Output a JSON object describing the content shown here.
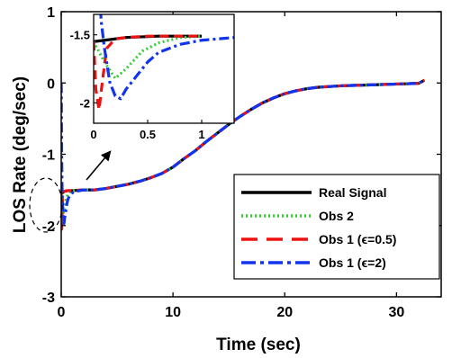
{
  "chart_data": {
    "type": "line",
    "xlabel": "Time (sec)",
    "ylabel": "LOS Rate (deg/sec)",
    "xlim": [
      0,
      34
    ],
    "ylim": [
      -3,
      1
    ],
    "xticks": [
      "0",
      "10",
      "20",
      "30"
    ],
    "yticks": [
      "-3",
      "-2",
      "-1",
      "0",
      "1"
    ],
    "grid": false,
    "legend_position": "bottom-right",
    "series": [
      {
        "name": "Real Signal",
        "color": "#000000",
        "style": "solid",
        "x": [
          0,
          0.3,
          0.6,
          1,
          2,
          3,
          4,
          5,
          6,
          7,
          8,
          9,
          10,
          11,
          12,
          13,
          14,
          15,
          16,
          17,
          18,
          19,
          20,
          21,
          22,
          23,
          24,
          25,
          26,
          27,
          28,
          29,
          30,
          31,
          32,
          32.5
        ],
        "y": [
          -1.55,
          -1.52,
          -1.51,
          -1.51,
          -1.5,
          -1.5,
          -1.48,
          -1.45,
          -1.42,
          -1.38,
          -1.33,
          -1.27,
          -1.18,
          -1.06,
          -0.95,
          -0.82,
          -0.7,
          -0.58,
          -0.47,
          -0.37,
          -0.28,
          -0.21,
          -0.15,
          -0.11,
          -0.08,
          -0.06,
          -0.05,
          -0.04,
          -0.035,
          -0.03,
          -0.025,
          -0.02,
          -0.015,
          -0.01,
          -0.005,
          0.04
        ]
      },
      {
        "name": "Obs 2",
        "color": "#33cc33",
        "style": "dotted",
        "x": [
          0,
          0.1,
          0.2,
          0.3,
          0.45,
          0.6,
          0.8,
          1,
          2,
          3,
          4,
          5,
          6,
          7,
          8,
          9,
          10,
          11,
          12,
          13,
          14,
          15,
          16,
          17,
          18,
          19,
          20,
          21,
          22,
          23,
          24,
          25,
          26,
          27,
          28,
          29,
          30,
          31,
          32,
          32.5
        ],
        "y": [
          -1.55,
          -1.7,
          -1.82,
          -1.75,
          -1.62,
          -1.56,
          -1.52,
          -1.51,
          -1.5,
          -1.5,
          -1.48,
          -1.45,
          -1.42,
          -1.38,
          -1.33,
          -1.27,
          -1.18,
          -1.06,
          -0.95,
          -0.82,
          -0.7,
          -0.58,
          -0.47,
          -0.37,
          -0.28,
          -0.21,
          -0.15,
          -0.11,
          -0.08,
          -0.06,
          -0.05,
          -0.04,
          -0.035,
          -0.03,
          -0.025,
          -0.02,
          -0.015,
          -0.01,
          -0.005,
          0.04
        ]
      },
      {
        "name": "Obs 1 (ϵ=0.5)",
        "color": "#ee1111",
        "style": "dashed",
        "x": [
          0,
          0.02,
          0.05,
          0.08,
          0.12,
          0.2,
          0.3,
          0.5,
          1,
          2,
          3,
          4,
          5,
          6,
          7,
          8,
          9,
          10,
          11,
          12,
          13,
          14,
          15,
          16,
          17,
          18,
          19,
          20,
          21,
          22,
          23,
          24,
          25,
          26,
          27,
          28,
          29,
          30,
          31,
          32,
          32.5
        ],
        "y": [
          -1.55,
          -1.9,
          -2.05,
          -1.85,
          -1.6,
          -1.53,
          -1.52,
          -1.51,
          -1.51,
          -1.5,
          -1.5,
          -1.48,
          -1.45,
          -1.42,
          -1.38,
          -1.33,
          -1.27,
          -1.18,
          -1.06,
          -0.95,
          -0.82,
          -0.7,
          -0.58,
          -0.47,
          -0.37,
          -0.28,
          -0.21,
          -0.15,
          -0.11,
          -0.08,
          -0.06,
          -0.05,
          -0.04,
          -0.035,
          -0.03,
          -0.025,
          -0.02,
          -0.015,
          -0.01,
          -0.005,
          0.04
        ]
      },
      {
        "name": "Obs 1 (ϵ=2)",
        "color": "#1133ee",
        "style": "dashdot",
        "x": [
          0,
          0.01,
          0.02,
          0.04,
          0.07,
          0.1,
          0.15,
          0.2,
          0.25,
          0.3,
          0.4,
          0.5,
          0.6,
          0.8,
          1,
          1.3,
          2,
          3,
          4,
          5,
          6,
          7,
          8,
          9,
          10,
          11,
          12,
          13,
          14,
          15,
          16,
          17,
          18,
          19,
          20,
          21,
          22,
          23,
          24,
          25,
          26,
          27,
          28,
          29,
          30,
          31,
          32,
          32.5
        ],
        "y": [
          0,
          -0.1,
          -0.5,
          -1.0,
          -1.4,
          -1.6,
          -1.85,
          -1.95,
          -1.97,
          -1.9,
          -1.8,
          -1.7,
          -1.63,
          -1.57,
          -1.54,
          -1.52,
          -1.5,
          -1.5,
          -1.48,
          -1.45,
          -1.42,
          -1.38,
          -1.33,
          -1.27,
          -1.18,
          -1.06,
          -0.95,
          -0.82,
          -0.7,
          -0.58,
          -0.47,
          -0.37,
          -0.28,
          -0.21,
          -0.15,
          -0.11,
          -0.08,
          -0.06,
          -0.05,
          -0.04,
          -0.035,
          -0.03,
          -0.025,
          -0.02,
          -0.015,
          -0.01,
          -0.005,
          0.04
        ]
      }
    ],
    "inset": {
      "xlim": [
        0,
        1.3
      ],
      "ylim": [
        -2.15,
        -1.35
      ],
      "xticks": [
        "0",
        "0.5",
        "1"
      ],
      "yticks": [
        "-2",
        "-1.5"
      ]
    },
    "annotation": "dashed ellipse around the initial transient with an arrow pointing to the zoomed inset"
  }
}
